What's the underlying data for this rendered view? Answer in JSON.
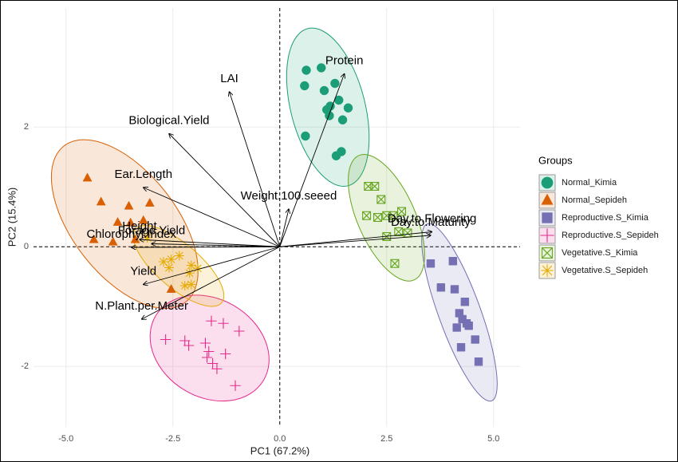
{
  "chart_data": {
    "type": "biplot",
    "x_label": "PC1 (67.2%)",
    "y_label": "PC2 (15.4%)",
    "xlim": [
      -5.76,
      5.62
    ],
    "ylim": [
      -3.01,
      3.99
    ],
    "xticks": [
      {
        "value": -5,
        "label": "-5.0"
      },
      -2.5,
      {
        "value": 0,
        "label": "0.0"
      },
      2.5,
      {
        "value": 5,
        "label": "5.0"
      }
    ],
    "yticks": [
      -2,
      0,
      2
    ],
    "grid": true,
    "legend_title": "Groups",
    "legend": "right",
    "series": [
      {
        "name": "Normal_Kimia",
        "color": "#1b9e77",
        "shape": "circle",
        "x": [
          0.62,
          0.97,
          1.29,
          0.58,
          1.04,
          1.38,
          1.6,
          1.18,
          1.1,
          1.16,
          1.47,
          0.6,
          1.32,
          1.44
        ],
        "y": [
          2.95,
          2.99,
          2.73,
          2.69,
          2.61,
          2.45,
          2.32,
          2.35,
          2.29,
          2.19,
          2.12,
          1.85,
          1.52,
          1.59
        ]
      },
      {
        "name": "Normal_Sepideh",
        "color": "#d95f02",
        "shape": "triangle",
        "x": [
          -4.5,
          -4.18,
          -3.53,
          -3.04,
          -3.79,
          -3.49,
          -3.19,
          -4.35,
          -3.9,
          -3.38,
          -2.54
        ],
        "y": [
          1.15,
          0.75,
          0.68,
          0.73,
          0.41,
          0.4,
          0.44,
          0.12,
          0.08,
          0.12,
          -0.71
        ]
      },
      {
        "name": "Reproductive.S_Kimia",
        "color": "#7570b3",
        "shape": "square",
        "x": [
          3.53,
          4.05,
          3.77,
          4.09,
          4.33,
          4.2,
          4.27,
          4.37,
          4.14,
          4.57,
          4.24,
          4.65,
          4.42
        ],
        "y": [
          -0.28,
          -0.24,
          -0.68,
          -0.71,
          -0.92,
          -1.11,
          -1.21,
          -1.28,
          -1.35,
          -1.55,
          -1.68,
          -1.92,
          -1.32
        ]
      },
      {
        "name": "Reproductive.S_Sepideh",
        "color": "#e7298a",
        "shape": "plus",
        "x": [
          -2.67,
          -2.22,
          -2.13,
          -1.74,
          -1.66,
          -1.7,
          -1.57,
          -1.47,
          -1.27,
          -1.32,
          -1.6,
          -0.95,
          -1.04
        ],
        "y": [
          -1.55,
          -1.57,
          -1.65,
          -1.61,
          -1.75,
          -1.85,
          -1.95,
          -2.04,
          -1.79,
          -1.28,
          -1.24,
          -1.41,
          -2.32
        ]
      },
      {
        "name": "Vegetative.S_Kimia",
        "color": "#66a61e",
        "shape": "boxx",
        "x": [
          2.07,
          2.22,
          2.37,
          2.03,
          2.29,
          2.5,
          2.65,
          2.85,
          2.78,
          2.99,
          2.5,
          2.69
        ],
        "y": [
          1.01,
          1.01,
          0.79,
          0.52,
          0.49,
          0.52,
          0.52,
          0.59,
          0.25,
          0.23,
          0.17,
          -0.28
        ]
      },
      {
        "name": "Vegetative.S_Sepideh",
        "color": "#e6ab02",
        "shape": "asterisk",
        "x": [
          -3.1,
          -2.72,
          -2.54,
          -2.59,
          -2.35,
          -2.07,
          -2.11,
          -1.92,
          -2.07,
          -2.22
        ],
        "y": [
          0.15,
          -0.25,
          -0.21,
          -0.35,
          -0.15,
          -0.31,
          -0.44,
          -0.36,
          -0.63,
          -0.65
        ]
      }
    ],
    "loadings": [
      {
        "label": "Protein",
        "x": 1.51,
        "y": 2.89
      },
      {
        "label": "LAI",
        "x": -1.18,
        "y": 2.59
      },
      {
        "label": "Biological.Yield",
        "x": -2.59,
        "y": 1.89
      },
      {
        "label": "Ear.Length",
        "x": -3.19,
        "y": 0.99
      },
      {
        "label": "Weight.100.seeed",
        "x": 0.21,
        "y": 0.63
      },
      {
        "label": "Day.to.Flowering",
        "x": 3.56,
        "y": 0.25
      },
      {
        "label": "Day.to.Maturity",
        "x": 3.53,
        "y": 0.19
      },
      {
        "label": "Height",
        "x": -3.28,
        "y": 0.12
      },
      {
        "label": "Forage.Yield",
        "x": -3.0,
        "y": 0.05
      },
      {
        "label": "Chlorophyl.Index",
        "x": -3.47,
        "y": -0.01
      },
      {
        "label": "Yield",
        "x": -3.19,
        "y": -0.63
      },
      {
        "label": "N.Plant.per.Meter",
        "x": -3.23,
        "y": -1.21
      }
    ]
  }
}
